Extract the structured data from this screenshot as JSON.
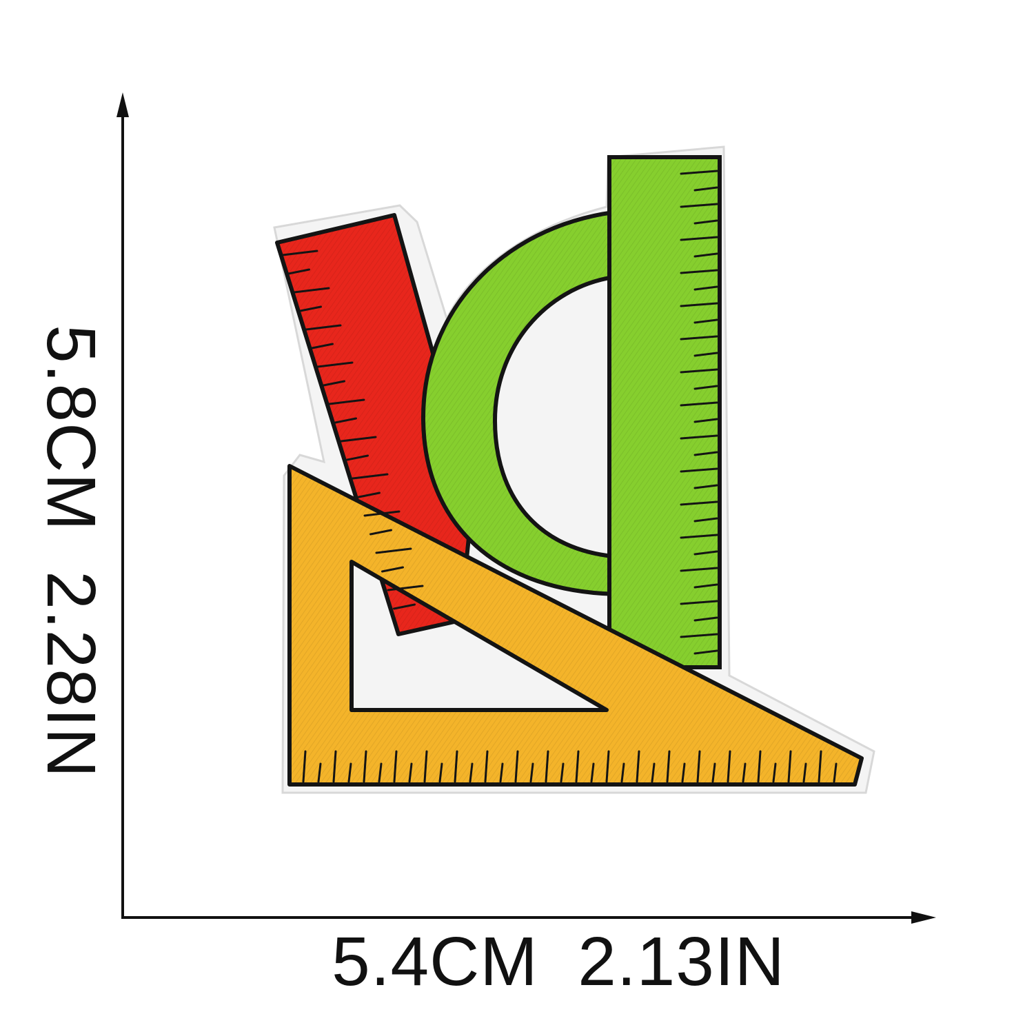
{
  "dimensions": {
    "width_label": "5.4CM  2.13IN",
    "height_label": "5.8CM  2.28IN"
  },
  "patch": {
    "colors": {
      "red": "#e8261c",
      "green": "#86cf2e",
      "yellow": "#f4b42a",
      "outline": "#141414",
      "backing": "#f4f4f4"
    }
  }
}
